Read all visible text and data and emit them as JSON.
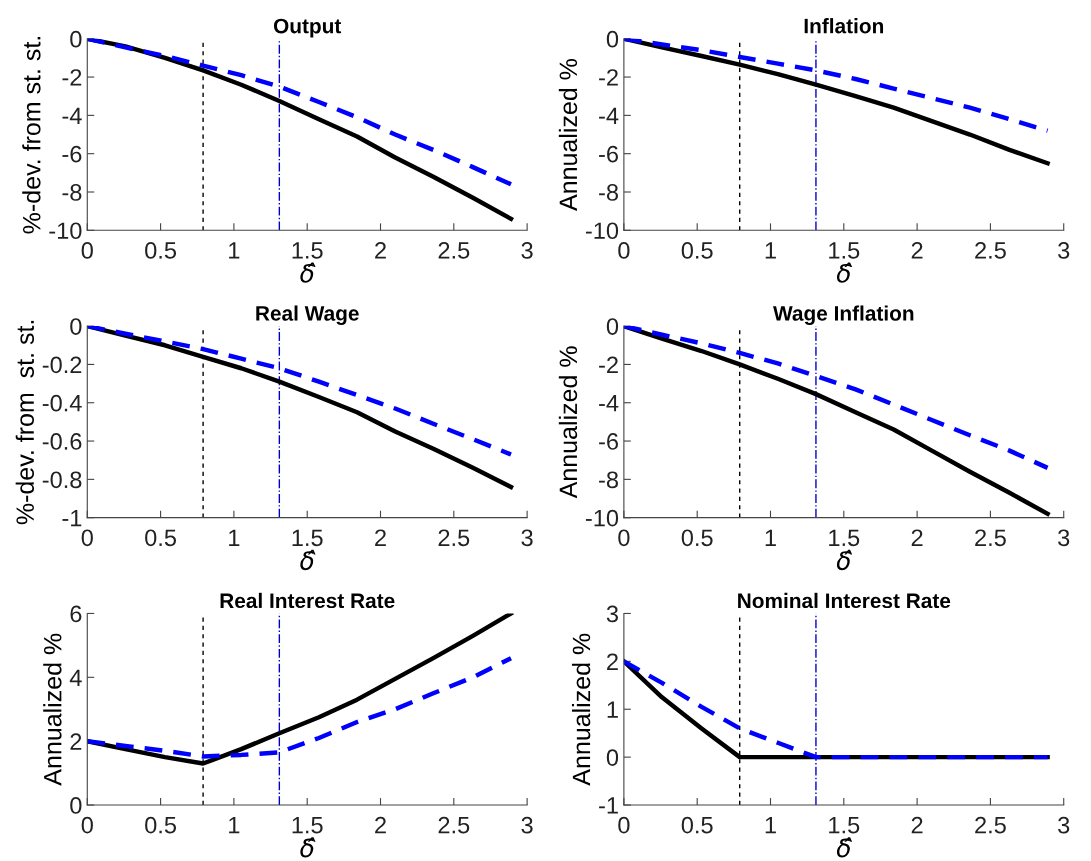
{
  "chart_data": [
    {
      "type": "line",
      "title": "Output",
      "xlabel": "δ̂",
      "ylabel": "%-dev. from st. st.",
      "x": [
        0,
        0.26,
        0.53,
        0.79,
        1.05,
        1.31,
        1.58,
        1.84,
        2.1,
        2.36,
        2.63,
        2.89
      ],
      "xlim": [
        0,
        3
      ],
      "xticks": [
        0,
        0.5,
        1,
        1.5,
        2,
        2.5,
        3
      ],
      "ylim": [
        -10,
        0
      ],
      "yticks": [
        -10,
        -8,
        -6,
        -4,
        -2,
        0
      ],
      "grid": false,
      "legend": false,
      "series": [
        {
          "color": "#000000",
          "line_style": "solid",
          "values": [
            0,
            -0.4,
            -1.0,
            -1.65,
            -2.4,
            -3.25,
            -4.2,
            -5.1,
            -6.2,
            -7.2,
            -8.3,
            -9.4
          ]
        },
        {
          "color": "#0000ff",
          "line_style": "dashed",
          "values": [
            0,
            -0.45,
            -0.9,
            -1.4,
            -1.9,
            -2.5,
            -3.3,
            -4.1,
            -5.0,
            -5.8,
            -6.7,
            -7.6
          ]
        }
      ],
      "ref_lines": [
        {
          "axis": "x",
          "value": 0.79,
          "color": "#000000",
          "line_style": "dashed"
        },
        {
          "axis": "x",
          "value": 1.31,
          "color": "#0000cc",
          "line_style": "dashdot"
        }
      ]
    },
    {
      "type": "line",
      "title": "Inflation",
      "xlabel": "δ̂",
      "ylabel": "Annualized %",
      "x": [
        0,
        0.26,
        0.53,
        0.79,
        1.05,
        1.31,
        1.58,
        1.84,
        2.1,
        2.36,
        2.63,
        2.89
      ],
      "xlim": [
        0,
        3
      ],
      "xticks": [
        0,
        0.5,
        1,
        1.5,
        2,
        2.5,
        3
      ],
      "ylim": [
        -10,
        0
      ],
      "yticks": [
        -10,
        -8,
        -6,
        -4,
        -2,
        0
      ],
      "grid": false,
      "legend": false,
      "series": [
        {
          "color": "#000000",
          "line_style": "solid",
          "values": [
            0,
            -0.45,
            -0.9,
            -1.35,
            -1.85,
            -2.4,
            -3.0,
            -3.6,
            -4.3,
            -5.0,
            -5.8,
            -6.5
          ]
        },
        {
          "color": "#0000ff",
          "line_style": "dashed",
          "values": [
            0,
            -0.3,
            -0.6,
            -0.95,
            -1.3,
            -1.65,
            -2.1,
            -2.6,
            -3.1,
            -3.6,
            -4.2,
            -4.8
          ]
        }
      ],
      "ref_lines": [
        {
          "axis": "x",
          "value": 0.79,
          "color": "#000000",
          "line_style": "dashed"
        },
        {
          "axis": "x",
          "value": 1.31,
          "color": "#0000cc",
          "line_style": "dashdot"
        }
      ]
    },
    {
      "type": "line",
      "title": "Real Wage",
      "xlabel": "δ̂",
      "ylabel": "%-dev. from  st. st.",
      "x": [
        0,
        0.26,
        0.53,
        0.79,
        1.05,
        1.31,
        1.58,
        1.84,
        2.1,
        2.36,
        2.63,
        2.89
      ],
      "xlim": [
        0,
        3
      ],
      "xticks": [
        0,
        0.5,
        1,
        1.5,
        2,
        2.5,
        3
      ],
      "ylim": [
        -1,
        0
      ],
      "yticks": [
        -1,
        -0.8,
        -0.6,
        -0.4,
        -0.2,
        0
      ],
      "grid": false,
      "legend": false,
      "series": [
        {
          "color": "#000000",
          "line_style": "solid",
          "values": [
            0,
            -0.05,
            -0.1,
            -0.16,
            -0.22,
            -0.29,
            -0.37,
            -0.45,
            -0.55,
            -0.64,
            -0.74,
            -0.84
          ]
        },
        {
          "color": "#0000ff",
          "line_style": "dashed",
          "values": [
            0,
            -0.04,
            -0.08,
            -0.12,
            -0.17,
            -0.22,
            -0.29,
            -0.36,
            -0.43,
            -0.51,
            -0.59,
            -0.67
          ]
        }
      ],
      "ref_lines": [
        {
          "axis": "x",
          "value": 0.79,
          "color": "#000000",
          "line_style": "dashed"
        },
        {
          "axis": "x",
          "value": 1.31,
          "color": "#0000cc",
          "line_style": "dashdot"
        }
      ]
    },
    {
      "type": "line",
      "title": "Wage Inflation",
      "xlabel": "δ̂",
      "ylabel": "Annualized %",
      "x": [
        0,
        0.26,
        0.53,
        0.79,
        1.05,
        1.31,
        1.58,
        1.84,
        2.1,
        2.36,
        2.63,
        2.89
      ],
      "xlim": [
        0,
        3
      ],
      "xticks": [
        0,
        0.5,
        1,
        1.5,
        2,
        2.5,
        3
      ],
      "ylim": [
        -10,
        0
      ],
      "yticks": [
        -10,
        -8,
        -6,
        -4,
        -2,
        0
      ],
      "grid": false,
      "legend": false,
      "series": [
        {
          "color": "#000000",
          "line_style": "solid",
          "values": [
            0,
            -0.65,
            -1.3,
            -2.0,
            -2.75,
            -3.55,
            -4.5,
            -5.4,
            -6.5,
            -7.6,
            -8.7,
            -9.8
          ]
        },
        {
          "color": "#0000ff",
          "line_style": "dashed",
          "values": [
            0,
            -0.45,
            -0.9,
            -1.4,
            -1.95,
            -2.6,
            -3.3,
            -4.1,
            -4.9,
            -5.7,
            -6.5,
            -7.4
          ]
        }
      ],
      "ref_lines": [
        {
          "axis": "x",
          "value": 0.79,
          "color": "#000000",
          "line_style": "dashed"
        },
        {
          "axis": "x",
          "value": 1.31,
          "color": "#0000cc",
          "line_style": "dashdot"
        }
      ]
    },
    {
      "type": "line",
      "title": "Real Interest Rate",
      "xlabel": "δ̂",
      "ylabel": "Annualized %",
      "x": [
        0,
        0.26,
        0.53,
        0.79,
        1.05,
        1.31,
        1.58,
        1.84,
        2.1,
        2.36,
        2.63,
        2.89
      ],
      "xlim": [
        0,
        3
      ],
      "xticks": [
        0,
        0.5,
        1,
        1.5,
        2,
        2.5,
        3
      ],
      "ylim": [
        0,
        6
      ],
      "yticks": [
        0,
        2,
        4,
        6
      ],
      "grid": false,
      "legend": false,
      "series": [
        {
          "color": "#000000",
          "line_style": "solid",
          "values": [
            2.0,
            1.75,
            1.5,
            1.3,
            1.75,
            2.25,
            2.75,
            3.3,
            3.95,
            4.6,
            5.3,
            6.0
          ]
        },
        {
          "color": "#0000ff",
          "line_style": "dashed",
          "values": [
            2.0,
            1.85,
            1.7,
            1.52,
            1.57,
            1.65,
            2.1,
            2.6,
            3.0,
            3.5,
            4.0,
            4.6
          ]
        }
      ],
      "ref_lines": [
        {
          "axis": "x",
          "value": 0.79,
          "color": "#000000",
          "line_style": "dashed"
        },
        {
          "axis": "x",
          "value": 1.31,
          "color": "#0000cc",
          "line_style": "dashdot"
        }
      ]
    },
    {
      "type": "line",
      "title": "Nominal Interest Rate",
      "xlabel": "δ̂",
      "ylabel": "Annualized %",
      "x": [
        0,
        0.26,
        0.53,
        0.79,
        1.05,
        1.31,
        1.58,
        1.84,
        2.1,
        2.36,
        2.63,
        2.89
      ],
      "xlim": [
        0,
        3
      ],
      "xticks": [
        0,
        0.5,
        1,
        1.5,
        2,
        2.5,
        3
      ],
      "ylim": [
        -1,
        3
      ],
      "yticks": [
        -1,
        0,
        1,
        2,
        3
      ],
      "grid": false,
      "legend": false,
      "series": [
        {
          "color": "#000000",
          "line_style": "solid",
          "values": [
            2.0,
            1.25,
            0.6,
            0,
            0,
            0,
            0,
            0,
            0,
            0,
            0,
            0
          ]
        },
        {
          "color": "#0000ff",
          "line_style": "dashed",
          "values": [
            2.0,
            1.55,
            1.05,
            0.6,
            0.3,
            0,
            0,
            0,
            0,
            0,
            0,
            0
          ]
        }
      ],
      "ref_lines": [
        {
          "axis": "x",
          "value": 0.79,
          "color": "#000000",
          "line_style": "dashed"
        },
        {
          "axis": "x",
          "value": 1.31,
          "color": "#0000cc",
          "line_style": "dashdot"
        }
      ]
    }
  ]
}
